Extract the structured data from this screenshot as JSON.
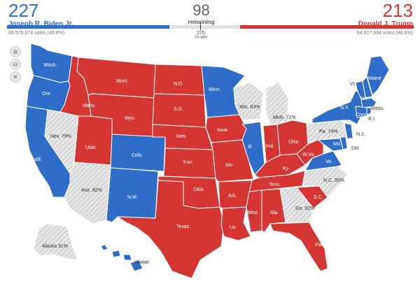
{
  "biden": {
    "count": "227",
    "name": "Joseph R. Biden Jr.",
    "votes": "66,578,674 votes (49.8%)",
    "color": "#2f6ec8"
  },
  "trump": {
    "count": "213",
    "name": "Donald J. Trump",
    "votes": "64,927,994 votes (48.5%)",
    "color": "#d33633"
  },
  "remaining": {
    "count": "98",
    "label": "remaining",
    "color": "#e0e0e0"
  },
  "to_win": {
    "value": "270",
    "label": "TO WIN"
  },
  "controls": {
    "zoom_in": "zoom-in",
    "zoom_out": "zoom-out",
    "reset": "close"
  },
  "states": {
    "wash": "Wash.",
    "ore": "Ore.",
    "calif": "Calif.",
    "idaho": "Idaho",
    "nev": "Nev. 79%",
    "mont": "Mont.",
    "wyo": "Wyo.",
    "utah": "Utah",
    "colo": "Colo.",
    "ariz": "Ariz. 82%",
    "nm": "N.M.",
    "nd": "N.D.",
    "sd": "S.D.",
    "neb": "Neb.",
    "kan": "Kan.",
    "okla": "Okla.",
    "texas": "Texas",
    "minn": "Minn.",
    "iowa": "Iowa",
    "mo": "Mo.",
    "ark": "Ark.",
    "la": "La.",
    "wis": "Wis. 83%",
    "ill": "Ill.",
    "mich": "Mich. 72%",
    "ind": "Ind.",
    "ohio": "Ohio",
    "ky": "Ky.",
    "tenn": "Tenn.",
    "miss": "Miss.",
    "ala": "Ala.",
    "ga": "Ga. 92%",
    "fla": "Fla.",
    "sc": "S.C.",
    "nc": "N.C. 95%",
    "va": "Va.",
    "wva": "W.Va.",
    "pa": "Pa. 74%",
    "ny": "N.Y.",
    "md": "Md.",
    "del": "Del.",
    "nj": "N.J.",
    "conn": "Conn.",
    "ri": "R.I.",
    "mass": "Mass.",
    "vt": "Vt.",
    "nh": "N.H.",
    "maine": "Maine",
    "alaska": "Alaska 31%",
    "hawaii": "Hawaii"
  }
}
